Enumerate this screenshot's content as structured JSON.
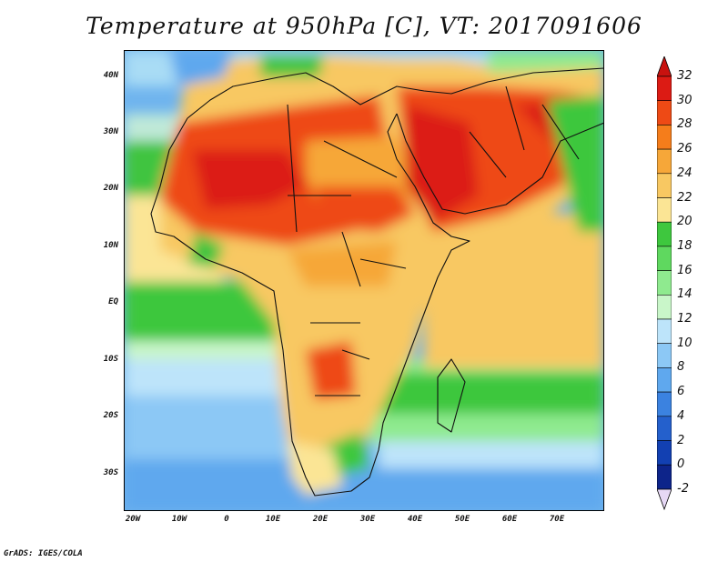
{
  "title": "Temperature at 950hPa [C], VT: 2017091606",
  "credit": "GrADS: IGES/COLA",
  "map": {
    "lat_ticks": [
      "40N",
      "30N",
      "20N",
      "10N",
      "EQ",
      "10S",
      "20S",
      "30S"
    ],
    "lon_ticks": [
      "20W",
      "10W",
      "0",
      "10E",
      "20E",
      "30E",
      "40E",
      "50E",
      "60E",
      "70E"
    ]
  },
  "colorbar": {
    "labels": [
      "32",
      "30",
      "28",
      "26",
      "24",
      "22",
      "20",
      "18",
      "16",
      "14",
      "12",
      "10",
      "8",
      "6",
      "4",
      "2",
      "0",
      "-2"
    ],
    "colors": [
      "#dc1b14",
      "#ee4a15",
      "#f57d1b",
      "#f6a739",
      "#f8c862",
      "#fbe595",
      "#3ec73e",
      "#5fd85f",
      "#8fea8f",
      "#c9f6c9",
      "#bde4fa",
      "#8cc8f5",
      "#5fa8ee",
      "#3b82e0",
      "#2460cc",
      "#1240b2",
      "#0d248a"
    ],
    "top_arrow_color": "#c8120f",
    "bottom_arrow_color": "#e6d8f5"
  }
}
